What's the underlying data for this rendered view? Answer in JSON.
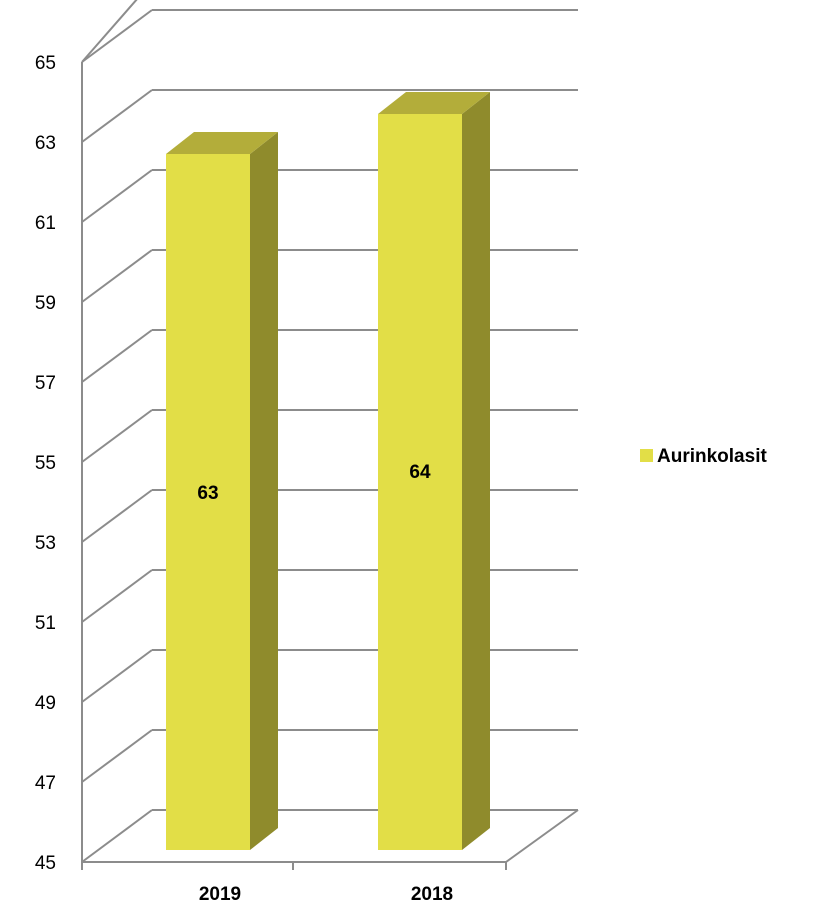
{
  "chart_data": {
    "type": "bar",
    "style": "3d-column",
    "categories": [
      "2019",
      "2018"
    ],
    "series": [
      {
        "name": "Aurinkolasit",
        "values": [
          63,
          64
        ]
      }
    ],
    "title": "",
    "xlabel": "",
    "ylabel": "",
    "ylim": [
      45,
      65
    ],
    "yticks": [
      "45",
      "47",
      "49",
      "51",
      "53",
      "55",
      "57",
      "59",
      "61",
      "63",
      "65"
    ],
    "grid": true,
    "legend": "right",
    "data_labels": [
      "63",
      "64"
    ]
  },
  "colors": {
    "bar_front": "#e2de47",
    "bar_top": "#b3ad3a",
    "bar_side": "#8f8b2c",
    "grid": "#8c8c8c",
    "axis": "#8c8c8c"
  }
}
